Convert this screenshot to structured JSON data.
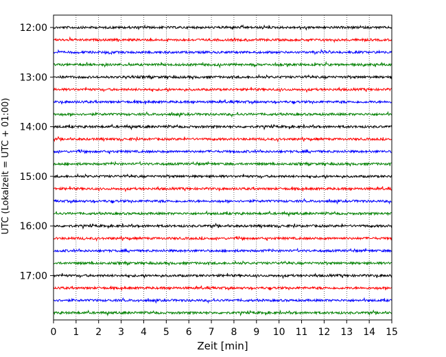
{
  "chart_data": {
    "type": "line",
    "subtype": "helicorder",
    "title": "",
    "xlabel": "Zeit  [min]",
    "ylabel": "UTC (Lokalzeit = UTC + 01:00)",
    "xlim": [
      0,
      15
    ],
    "x_ticks": [
      0,
      1,
      2,
      3,
      4,
      5,
      6,
      7,
      8,
      9,
      10,
      11,
      12,
      13,
      14,
      15
    ],
    "x_tick_labels": [
      "0",
      "1",
      "2",
      "3",
      "4",
      "5",
      "6",
      "7",
      "8",
      "9",
      "10",
      "11",
      "12",
      "13",
      "14",
      "15"
    ],
    "y_tick_labels": [
      "12:00",
      "13:00",
      "14:00",
      "15:00",
      "16:00",
      "17:00"
    ],
    "grid": {
      "vertical": true,
      "style": "dotted"
    },
    "line_color_cycle": [
      "#000000",
      "#ff0000",
      "#0000ff",
      "#008000"
    ],
    "rows": [
      {
        "start": "12:00",
        "color": "#000000"
      },
      {
        "start": "12:15",
        "color": "#ff0000"
      },
      {
        "start": "12:30",
        "color": "#0000ff"
      },
      {
        "start": "12:45",
        "color": "#008000"
      },
      {
        "start": "13:00",
        "color": "#000000"
      },
      {
        "start": "13:15",
        "color": "#ff0000"
      },
      {
        "start": "13:30",
        "color": "#0000ff"
      },
      {
        "start": "13:45",
        "color": "#008000"
      },
      {
        "start": "14:00",
        "color": "#000000"
      },
      {
        "start": "14:15",
        "color": "#ff0000"
      },
      {
        "start": "14:30",
        "color": "#0000ff"
      },
      {
        "start": "14:45",
        "color": "#008000"
      },
      {
        "start": "15:00",
        "color": "#000000"
      },
      {
        "start": "15:15",
        "color": "#ff0000"
      },
      {
        "start": "15:30",
        "color": "#0000ff"
      },
      {
        "start": "15:45",
        "color": "#008000"
      },
      {
        "start": "16:00",
        "color": "#000000"
      },
      {
        "start": "16:15",
        "color": "#ff0000"
      },
      {
        "start": "16:30",
        "color": "#0000ff"
      },
      {
        "start": "16:45",
        "color": "#008000"
      },
      {
        "start": "17:00",
        "color": "#000000"
      },
      {
        "start": "17:15",
        "color": "#ff0000"
      },
      {
        "start": "17:30",
        "color": "#0000ff"
      },
      {
        "start": "17:45",
        "color": "#008000"
      }
    ]
  }
}
